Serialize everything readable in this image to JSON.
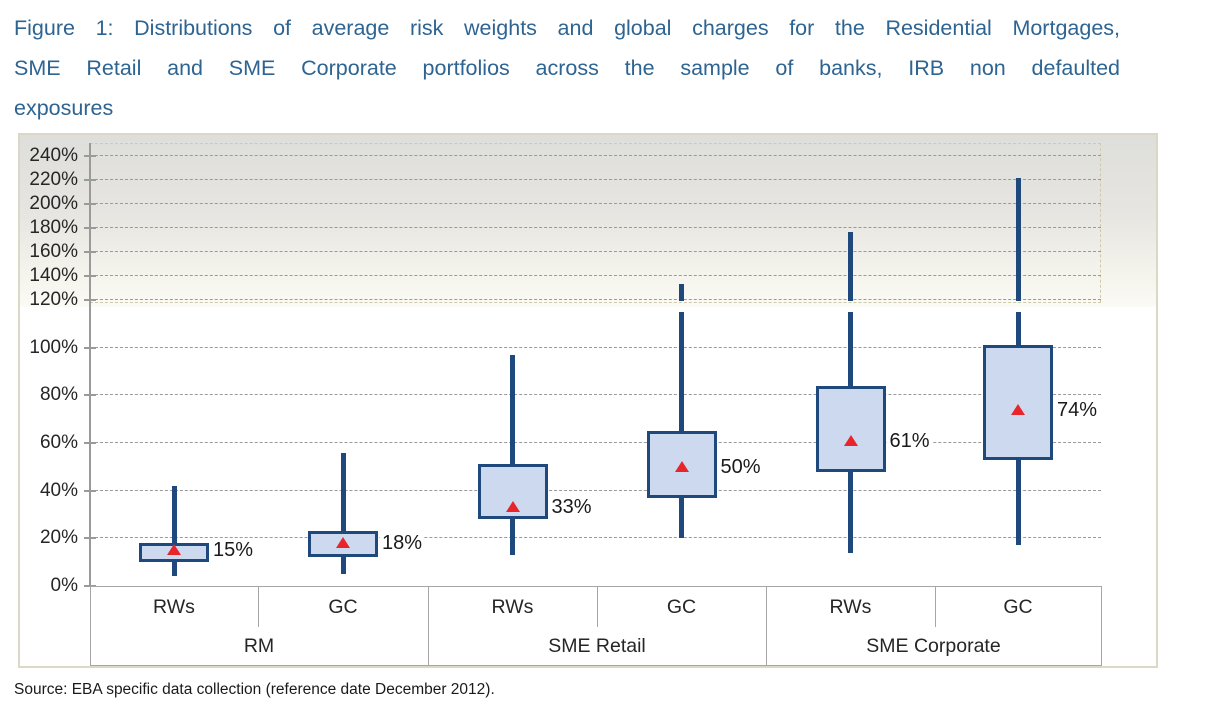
{
  "title": {
    "line1": "Figure 1: Distributions of average risk weights and global charges for the Residential Mortgages,",
    "line2": "SME Retail and SME Corporate portfolios across the sample of banks, IRB non defaulted",
    "line3": "exposures"
  },
  "source": "Source: EBA specific data collection (reference date December 2012).",
  "colors": {
    "title_text": "#2e6492",
    "box_fill": "#cdd9ee",
    "box_border": "#1f497d",
    "whisker": "#1f497d",
    "mean_marker": "#e8252b",
    "gridline": "#9a9a9a",
    "frame_border": "#dbd8c6",
    "table_border": "#a6a6a6",
    "label_text": "#1a1a1a"
  },
  "chart_data": {
    "type": "boxplot",
    "title": "Figure 1: Distributions of average risk weights and global charges for the Residential Mortgages, SME Retail and SME Corporate portfolios across the sample of banks, IRB non defaulted exposures",
    "y_axis": {
      "unit": "%",
      "ticks": [
        0,
        20,
        40,
        60,
        80,
        100,
        120,
        140,
        160,
        180,
        200,
        220,
        240
      ],
      "tick_labels": [
        "0%",
        "20%",
        "40%",
        "60%",
        "80%",
        "100%",
        "120%",
        "140%",
        "160%",
        "180%",
        "200%",
        "220%",
        "240%"
      ],
      "range": [
        0,
        250
      ],
      "compressed_above": 120,
      "gridlines": "dashed"
    },
    "legend": "red triangle = mean value",
    "groups": [
      {
        "label": "RM",
        "items": [
          {
            "label": "RWs",
            "whisker_low": 4,
            "q1": 10,
            "q3": 18,
            "whisker_high": 42,
            "mean": 15,
            "mean_label": "15%"
          },
          {
            "label": "GC",
            "whisker_low": 5,
            "q1": 12,
            "q3": 23,
            "whisker_high": 56,
            "mean": 18,
            "mean_label": "18%"
          }
        ]
      },
      {
        "label": "SME Retail",
        "items": [
          {
            "label": "RWs",
            "whisker_low": 13,
            "q1": 28,
            "q3": 51,
            "whisker_high": 97,
            "mean": 33,
            "mean_label": "33%"
          },
          {
            "label": "GC",
            "whisker_low": 20,
            "q1": 37,
            "q3": 65,
            "whisker_high": 133,
            "mean": 50,
            "mean_label": "50%"
          }
        ]
      },
      {
        "label": "SME Corporate",
        "items": [
          {
            "label": "RWs",
            "whisker_low": 14,
            "q1": 48,
            "q3": 84,
            "whisker_high": 177,
            "mean": 61,
            "mean_label": "61%"
          },
          {
            "label": "GC",
            "whisker_low": 17,
            "q1": 53,
            "q3": 101,
            "whisker_high": 222,
            "mean": 74,
            "mean_label": "74%"
          }
        ]
      }
    ]
  }
}
